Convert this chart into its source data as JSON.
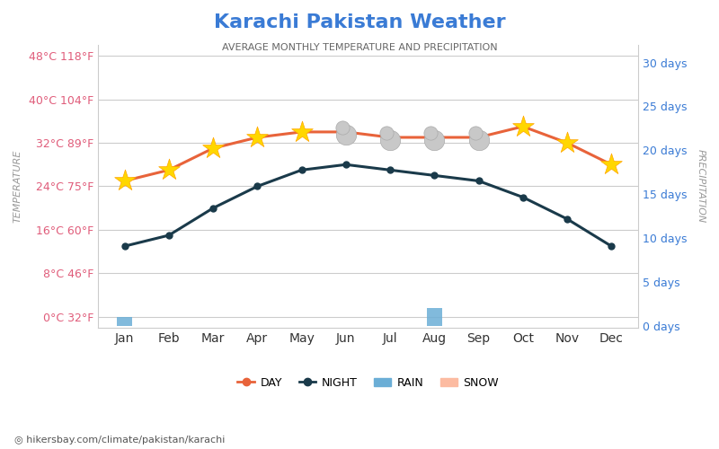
{
  "title": "Karachi Pakistan Weather",
  "subtitle": "AVERAGE MONTHLY TEMPERATURE AND PRECIPITATION",
  "months": [
    "Jan",
    "Feb",
    "Mar",
    "Apr",
    "May",
    "Jun",
    "Jul",
    "Aug",
    "Sep",
    "Oct",
    "Nov",
    "Dec"
  ],
  "day_temps": [
    25,
    27,
    31,
    33,
    34,
    34,
    33,
    33,
    33,
    35,
    32,
    28
  ],
  "night_temps": [
    13,
    15,
    20,
    24,
    27,
    28,
    27,
    26,
    25,
    22,
    18,
    13
  ],
  "rain_days": [
    1,
    0,
    0,
    0,
    0,
    0,
    0,
    2,
    0,
    0,
    0,
    0
  ],
  "snow_days": [
    0,
    0,
    0,
    0,
    0,
    0,
    0,
    0,
    0,
    0,
    0,
    0
  ],
  "yticks_left_c": [
    0,
    8,
    16,
    24,
    32,
    40,
    48
  ],
  "yticks_left_f": [
    32,
    46,
    60,
    75,
    89,
    104,
    118
  ],
  "yticks_right": [
    0,
    5,
    10,
    15,
    20,
    25,
    30
  ],
  "ylim_temp": [
    -2,
    50
  ],
  "ylim_precip": [
    -0.2,
    32
  ],
  "title_color": "#3a7bd5",
  "subtitle_color": "#666666",
  "day_line_color": "#e8633a",
  "night_line_color": "#1a3a4a",
  "rain_bar_color": "#6baed6",
  "snow_bar_color": "#fcbba1",
  "left_tick_color": "#e05c7a",
  "right_tick_color": "#3a7bd5",
  "grid_color": "#cccccc",
  "bg_color": "#ffffff",
  "watermark": "hikersbay.com/climate/pakistan/karachi",
  "watermark_color": "#555555",
  "sun_indices": [
    0,
    1,
    2,
    3,
    4,
    9,
    10,
    11
  ],
  "cloud_indices": [
    5,
    6,
    7,
    8
  ]
}
